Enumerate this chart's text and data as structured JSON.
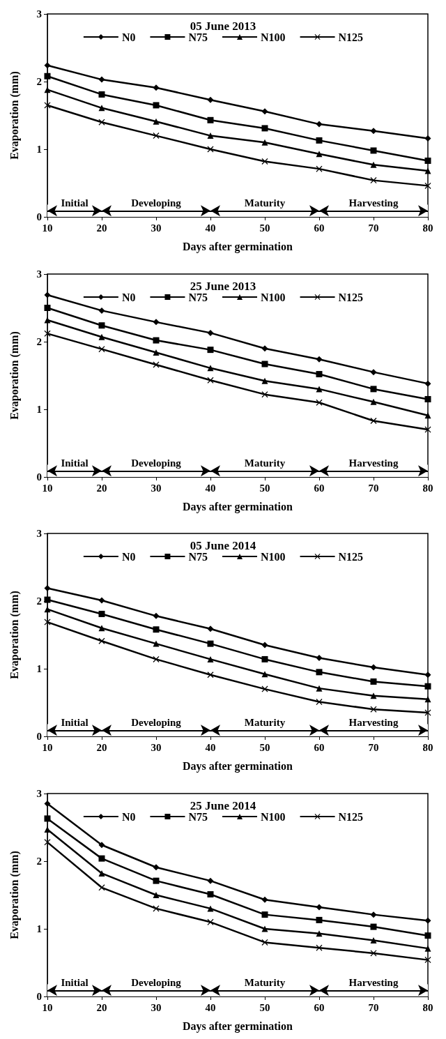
{
  "chart_data": [
    {
      "type": "line",
      "title": "05 June 2013",
      "xlabel": "Days after germination",
      "ylabel": "Evaporation (mm)",
      "x": [
        10,
        20,
        30,
        40,
        50,
        60,
        70,
        80
      ],
      "xlim": [
        10,
        80
      ],
      "xticks": [
        10,
        20,
        30,
        40,
        50,
        60,
        70,
        80
      ],
      "ylim": [
        0,
        3
      ],
      "yticks": [
        0,
        1,
        2,
        3
      ],
      "legend": "top",
      "line_style": "solid",
      "series": [
        {
          "name": "N0",
          "color": "#000000",
          "marker": "diamond",
          "values": [
            2.24,
            2.03,
            1.91,
            1.73,
            1.56,
            1.37,
            1.27,
            1.16
          ]
        },
        {
          "name": "N75",
          "color": "#000000",
          "marker": "square",
          "values": [
            2.08,
            1.81,
            1.65,
            1.43,
            1.31,
            1.13,
            0.98,
            0.83
          ]
        },
        {
          "name": "N100",
          "color": "#000000",
          "marker": "triangle",
          "values": [
            1.88,
            1.61,
            1.41,
            1.2,
            1.1,
            0.93,
            0.77,
            0.68
          ]
        },
        {
          "name": "N125",
          "color": "#000000",
          "marker": "cross",
          "values": [
            1.65,
            1.4,
            1.2,
            1.0,
            0.82,
            0.71,
            0.54,
            0.46
          ]
        }
      ],
      "bands": [
        {
          "axis": "x",
          "from": 10,
          "to": 20,
          "label": "Initial"
        },
        {
          "axis": "x",
          "from": 20,
          "to": 40,
          "label": "Developing"
        },
        {
          "axis": "x",
          "from": 40,
          "to": 60,
          "label": "Maturity"
        },
        {
          "axis": "x",
          "from": 60,
          "to": 80,
          "label": "Harvesting"
        }
      ]
    },
    {
      "type": "line",
      "title": "25 June 2013",
      "xlabel": "Days after germination",
      "ylabel": "Evaporation (mm)",
      "x": [
        10,
        20,
        30,
        40,
        50,
        60,
        70,
        80
      ],
      "xlim": [
        10,
        80
      ],
      "xticks": [
        10,
        20,
        30,
        40,
        50,
        60,
        70,
        80
      ],
      "ylim": [
        0,
        3
      ],
      "yticks": [
        0,
        1,
        2,
        3
      ],
      "legend": "top",
      "line_style": "solid",
      "series": [
        {
          "name": "N0",
          "color": "#000000",
          "marker": "diamond",
          "values": [
            2.69,
            2.46,
            2.29,
            2.13,
            1.9,
            1.74,
            1.55,
            1.38
          ]
        },
        {
          "name": "N75",
          "color": "#000000",
          "marker": "square",
          "values": [
            2.5,
            2.24,
            2.02,
            1.88,
            1.67,
            1.52,
            1.3,
            1.15
          ]
        },
        {
          "name": "N100",
          "color": "#000000",
          "marker": "triangle",
          "values": [
            2.32,
            2.07,
            1.84,
            1.61,
            1.42,
            1.3,
            1.11,
            0.91
          ]
        },
        {
          "name": "N125",
          "color": "#000000",
          "marker": "cross",
          "values": [
            2.12,
            1.89,
            1.66,
            1.43,
            1.22,
            1.1,
            0.83,
            0.7
          ]
        }
      ],
      "bands": [
        {
          "axis": "x",
          "from": 10,
          "to": 20,
          "label": "Initial"
        },
        {
          "axis": "x",
          "from": 20,
          "to": 40,
          "label": "Developing"
        },
        {
          "axis": "x",
          "from": 40,
          "to": 60,
          "label": "Maturity"
        },
        {
          "axis": "x",
          "from": 60,
          "to": 80,
          "label": "Harvesting"
        }
      ]
    },
    {
      "type": "line",
      "title": "05 June 2014",
      "xlabel": "Days after germination",
      "ylabel": "Evaporation (mm)",
      "x": [
        10,
        20,
        30,
        40,
        50,
        60,
        70,
        80
      ],
      "xlim": [
        10,
        80
      ],
      "xticks": [
        10,
        20,
        30,
        40,
        50,
        60,
        70,
        80
      ],
      "ylim": [
        0,
        3
      ],
      "yticks": [
        0,
        1,
        2,
        3
      ],
      "legend": "top",
      "line_style": "solid",
      "series": [
        {
          "name": "N0",
          "color": "#000000",
          "marker": "diamond",
          "values": [
            2.19,
            2.01,
            1.78,
            1.59,
            1.35,
            1.16,
            1.02,
            0.91
          ]
        },
        {
          "name": "N75",
          "color": "#000000",
          "marker": "square",
          "values": [
            2.02,
            1.81,
            1.58,
            1.37,
            1.14,
            0.95,
            0.81,
            0.74
          ]
        },
        {
          "name": "N100",
          "color": "#000000",
          "marker": "triangle",
          "values": [
            1.88,
            1.6,
            1.37,
            1.14,
            0.92,
            0.71,
            0.6,
            0.55
          ]
        },
        {
          "name": "N125",
          "color": "#000000",
          "marker": "cross",
          "values": [
            1.69,
            1.41,
            1.14,
            0.91,
            0.7,
            0.51,
            0.4,
            0.35
          ]
        }
      ],
      "bands": [
        {
          "axis": "x",
          "from": 10,
          "to": 20,
          "label": "Initial"
        },
        {
          "axis": "x",
          "from": 20,
          "to": 40,
          "label": "Developing"
        },
        {
          "axis": "x",
          "from": 40,
          "to": 60,
          "label": "Maturity"
        },
        {
          "axis": "x",
          "from": 60,
          "to": 80,
          "label": "Harvesting"
        }
      ]
    },
    {
      "type": "line",
      "title": "25 June 2014",
      "xlabel": "Days after germination",
      "ylabel": "Evaporation (mm)",
      "x": [
        10,
        20,
        30,
        40,
        50,
        60,
        70,
        80
      ],
      "xlim": [
        10,
        80
      ],
      "xticks": [
        10,
        20,
        30,
        40,
        50,
        60,
        70,
        80
      ],
      "ylim": [
        0,
        3
      ],
      "yticks": [
        0,
        1,
        2,
        3
      ],
      "legend": "top",
      "line_style": "solid",
      "series": [
        {
          "name": "N0",
          "color": "#000000",
          "marker": "diamond",
          "values": [
            2.85,
            2.24,
            1.91,
            1.71,
            1.43,
            1.32,
            1.21,
            1.12
          ]
        },
        {
          "name": "N75",
          "color": "#000000",
          "marker": "square",
          "values": [
            2.63,
            2.04,
            1.71,
            1.51,
            1.21,
            1.13,
            1.03,
            0.9
          ]
        },
        {
          "name": "N100",
          "color": "#000000",
          "marker": "triangle",
          "values": [
            2.47,
            1.82,
            1.5,
            1.3,
            1.0,
            0.93,
            0.83,
            0.71
          ]
        },
        {
          "name": "N125",
          "color": "#000000",
          "marker": "cross",
          "values": [
            2.28,
            1.61,
            1.3,
            1.1,
            0.8,
            0.72,
            0.64,
            0.54
          ]
        }
      ],
      "bands": [
        {
          "axis": "x",
          "from": 10,
          "to": 20,
          "label": "Initial"
        },
        {
          "axis": "x",
          "from": 20,
          "to": 40,
          "label": "Developing"
        },
        {
          "axis": "x",
          "from": 40,
          "to": 60,
          "label": "Maturity"
        },
        {
          "axis": "x",
          "from": 60,
          "to": 80,
          "label": "Harvesting"
        }
      ]
    }
  ]
}
